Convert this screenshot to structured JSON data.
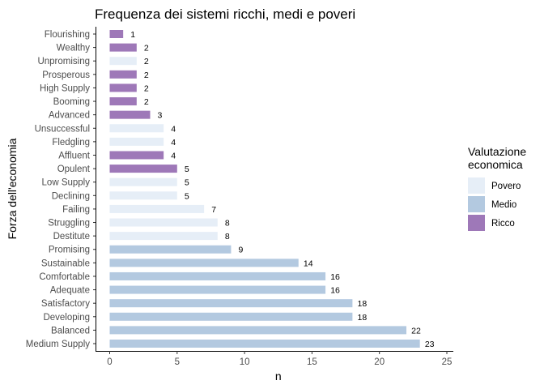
{
  "chart_data": {
    "type": "bar",
    "orientation": "horizontal",
    "title": "Frequenza dei sistemi ricchi, medi e poveri",
    "xlabel": "n",
    "ylabel": "Forza dell'economia",
    "xlim": [
      0,
      25
    ],
    "xticks": [
      "0",
      "5",
      "10",
      "15",
      "20",
      "25"
    ],
    "grid": false,
    "legend": {
      "title": "Valutazione economica",
      "title_lines": [
        "Valutazione",
        "economica"
      ],
      "placement": "right",
      "items": [
        {
          "label": "Povero",
          "color": "#e6eef7"
        },
        {
          "label": "Medio",
          "color": "#b3c9e0"
        },
        {
          "label": "Ricco",
          "color": "#9e78b8"
        }
      ]
    },
    "categories": [
      "Flourishing",
      "Wealthy",
      "Unpromising",
      "Prosperous",
      "High Supply",
      "Booming",
      "Advanced",
      "Unsuccessful",
      "Fledgling",
      "Affluent",
      "Opulent",
      "Low Supply",
      "Declining",
      "Failing",
      "Struggling",
      "Destitute",
      "Promising",
      "Sustainable",
      "Comfortable",
      "Adequate",
      "Satisfactory",
      "Developing",
      "Balanced",
      "Medium Supply"
    ],
    "values": [
      1,
      2,
      2,
      2,
      2,
      2,
      3,
      4,
      4,
      4,
      5,
      5,
      5,
      7,
      8,
      8,
      9,
      14,
      16,
      16,
      18,
      18,
      22,
      23
    ],
    "groups": [
      "Ricco",
      "Ricco",
      "Povero",
      "Ricco",
      "Ricco",
      "Ricco",
      "Ricco",
      "Povero",
      "Povero",
      "Ricco",
      "Ricco",
      "Povero",
      "Povero",
      "Povero",
      "Povero",
      "Povero",
      "Medio",
      "Medio",
      "Medio",
      "Medio",
      "Medio",
      "Medio",
      "Medio",
      "Medio"
    ],
    "data_labels": [
      "1",
      "2",
      "2",
      "2",
      "2",
      "2",
      "3",
      "4",
      "4",
      "4",
      "5",
      "5",
      "5",
      "7",
      "8",
      "8",
      "9",
      "14",
      "16",
      "16",
      "18",
      "18",
      "22",
      "23"
    ]
  }
}
